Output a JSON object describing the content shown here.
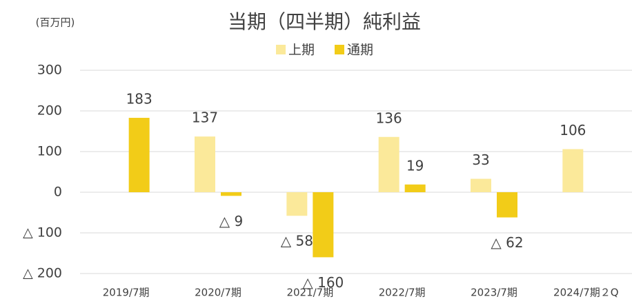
{
  "chart_data": {
    "type": "bar",
    "title": "当期（四半期）純利益",
    "unit_label": "(百万円)",
    "categories": [
      "2019/7期",
      "2020/7期",
      "2021/7期",
      "2022/7期",
      "2023/7期",
      "2024/7期２Q"
    ],
    "series": [
      {
        "name": "上期",
        "color": "#fbe99a",
        "values": [
          null,
          137,
          -58,
          136,
          33,
          106
        ],
        "value_labels": [
          null,
          "137",
          "△ 58",
          "136",
          "33",
          "106"
        ]
      },
      {
        "name": "通期",
        "color": "#f2cc18",
        "values": [
          183,
          -9,
          -160,
          19,
          -62,
          null
        ],
        "value_labels": [
          "183",
          "△ 9",
          "△ 160",
          "19",
          "△ 62",
          null
        ]
      }
    ],
    "ylim": [
      -200,
      300
    ],
    "yticks": [
      300,
      200,
      100,
      0,
      {
        "value": -100,
        "label": "△ 100"
      },
      {
        "value": -200,
        "label": "△ 200"
      }
    ],
    "grid": true,
    "legend": "top"
  }
}
